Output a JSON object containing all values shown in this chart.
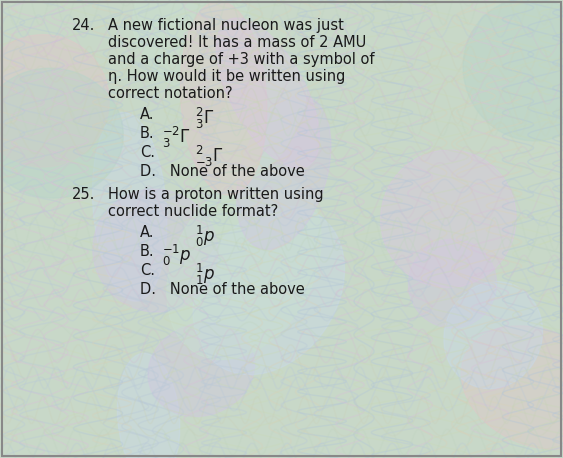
{
  "figsize": [
    5.63,
    4.58
  ],
  "dpi": 100,
  "text_color": "#1a1a1a",
  "q24_number": "24.",
  "q24_line1": "A new fictional nucleon was just",
  "q24_line2": "discovered! It has a mass of 2 AMU",
  "q24_line3": "and a charge of +3 with a symbol of",
  "q24_line4": "η. How would it be written using",
  "q24_line5": "correct notation?",
  "q24_A_label": "A.",
  "q24_B_label": "B.",
  "q24_C_label": "C.",
  "q24_D_label": "D.   None of the above",
  "q25_number": "25.",
  "q25_line1": "How is a proton written using",
  "q25_line2": "correct nuclide format?",
  "q25_A_label": "A.",
  "q25_B_label": "B.",
  "q25_C_label": "C.",
  "q25_D_label": "D.   None of the above",
  "font_size_main": 10.5,
  "font_size_answer": 10.5,
  "font_size_math": 11,
  "bg_base": "#c8d8c8",
  "wave_colors_v": [
    "#b0c4d8",
    "#d8c0d8",
    "#c8d8b8",
    "#d8d0b8",
    "#b8c8d8"
  ],
  "wave_colors_h": [
    "#c0d4c0",
    "#b8c8d8",
    "#d0c0d0",
    "#c8d0b8"
  ]
}
